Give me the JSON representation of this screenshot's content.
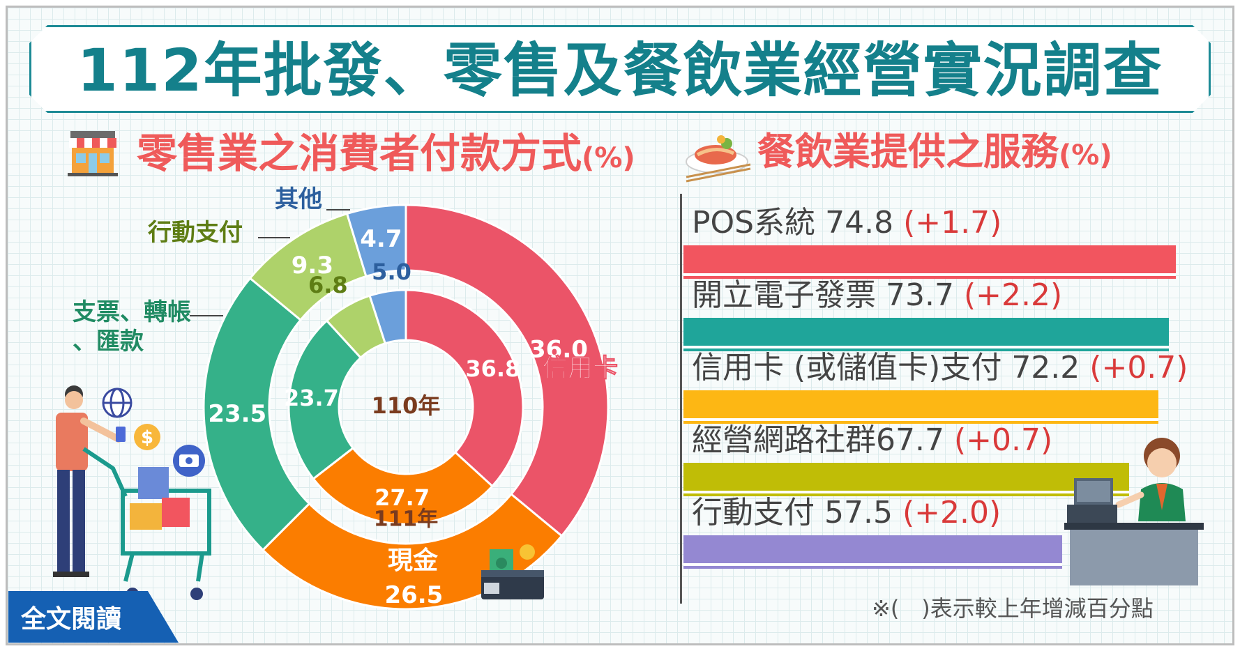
{
  "title": "112年批發、零售及餐飲業經營實況調查",
  "read_button": "全文閱讀",
  "footnote": "※(　)表示較上年增減百分點",
  "colors": {
    "teal": "#14808b",
    "coral": "#ef5a5a",
    "credit": "#eb5468",
    "cash": "#fb7d00",
    "transfer": "#35b189",
    "mobile": "#aed26a",
    "other": "#6b9fdb"
  },
  "chart_data": [
    {
      "type": "donut",
      "title": "零售業之消費者付款方式",
      "unit": "(%)",
      "rings": [
        {
          "name": "111年",
          "slices": [
            {
              "label": "信用卡",
              "value": 36.0,
              "color": "#eb5468"
            },
            {
              "label": "現金",
              "value": 26.5,
              "color": "#fb7d00"
            },
            {
              "label": "支票、轉帳、匯款",
              "value": 23.5,
              "color": "#35b189"
            },
            {
              "label": "行動支付",
              "value": 9.3,
              "color": "#aed26a"
            },
            {
              "label": "其他",
              "value": 4.7,
              "color": "#6b9fdb"
            }
          ]
        },
        {
          "name": "110年",
          "slices": [
            {
              "label": "信用卡",
              "value": 36.8,
              "color": "#eb5468"
            },
            {
              "label": "現金",
              "value": 27.7,
              "color": "#fb7d00"
            },
            {
              "label": "支票、轉帳、匯款",
              "value": 23.7,
              "color": "#35b189"
            },
            {
              "label": "行動支付",
              "value": 6.8,
              "color": "#aed26a"
            },
            {
              "label": "其他",
              "value": 5.0,
              "color": "#6b9fdb"
            }
          ]
        }
      ],
      "outer_labels": {
        "other": "其他",
        "mobile": "行動支付",
        "transfer_line1": "支票、轉帳",
        "transfer_line2": "、匯款",
        "credit": "信用卡",
        "cash": "現金"
      }
    },
    {
      "type": "bar",
      "orientation": "horizontal",
      "title": "餐飲業提供之服務",
      "unit": "(%)",
      "categories": [
        "POS系統",
        "開立電子發票",
        "信用卡 (或儲值卡)支付",
        "經營網路社群",
        "行動支付"
      ],
      "values": [
        74.8,
        73.7,
        72.2,
        67.7,
        57.5
      ],
      "value_text": [
        "74.8",
        "73.7",
        "72.2",
        "67.7",
        "57.5"
      ],
      "changes": [
        "(+1.7)",
        "(+2.2)",
        "(+0.7)",
        "(+0.7)",
        "(+2.0)"
      ],
      "colors": [
        "#f2555f",
        "#1fa59a",
        "#fdb714",
        "#c0bd06",
        "#9488d2"
      ],
      "xlim": [
        0,
        80
      ]
    }
  ]
}
